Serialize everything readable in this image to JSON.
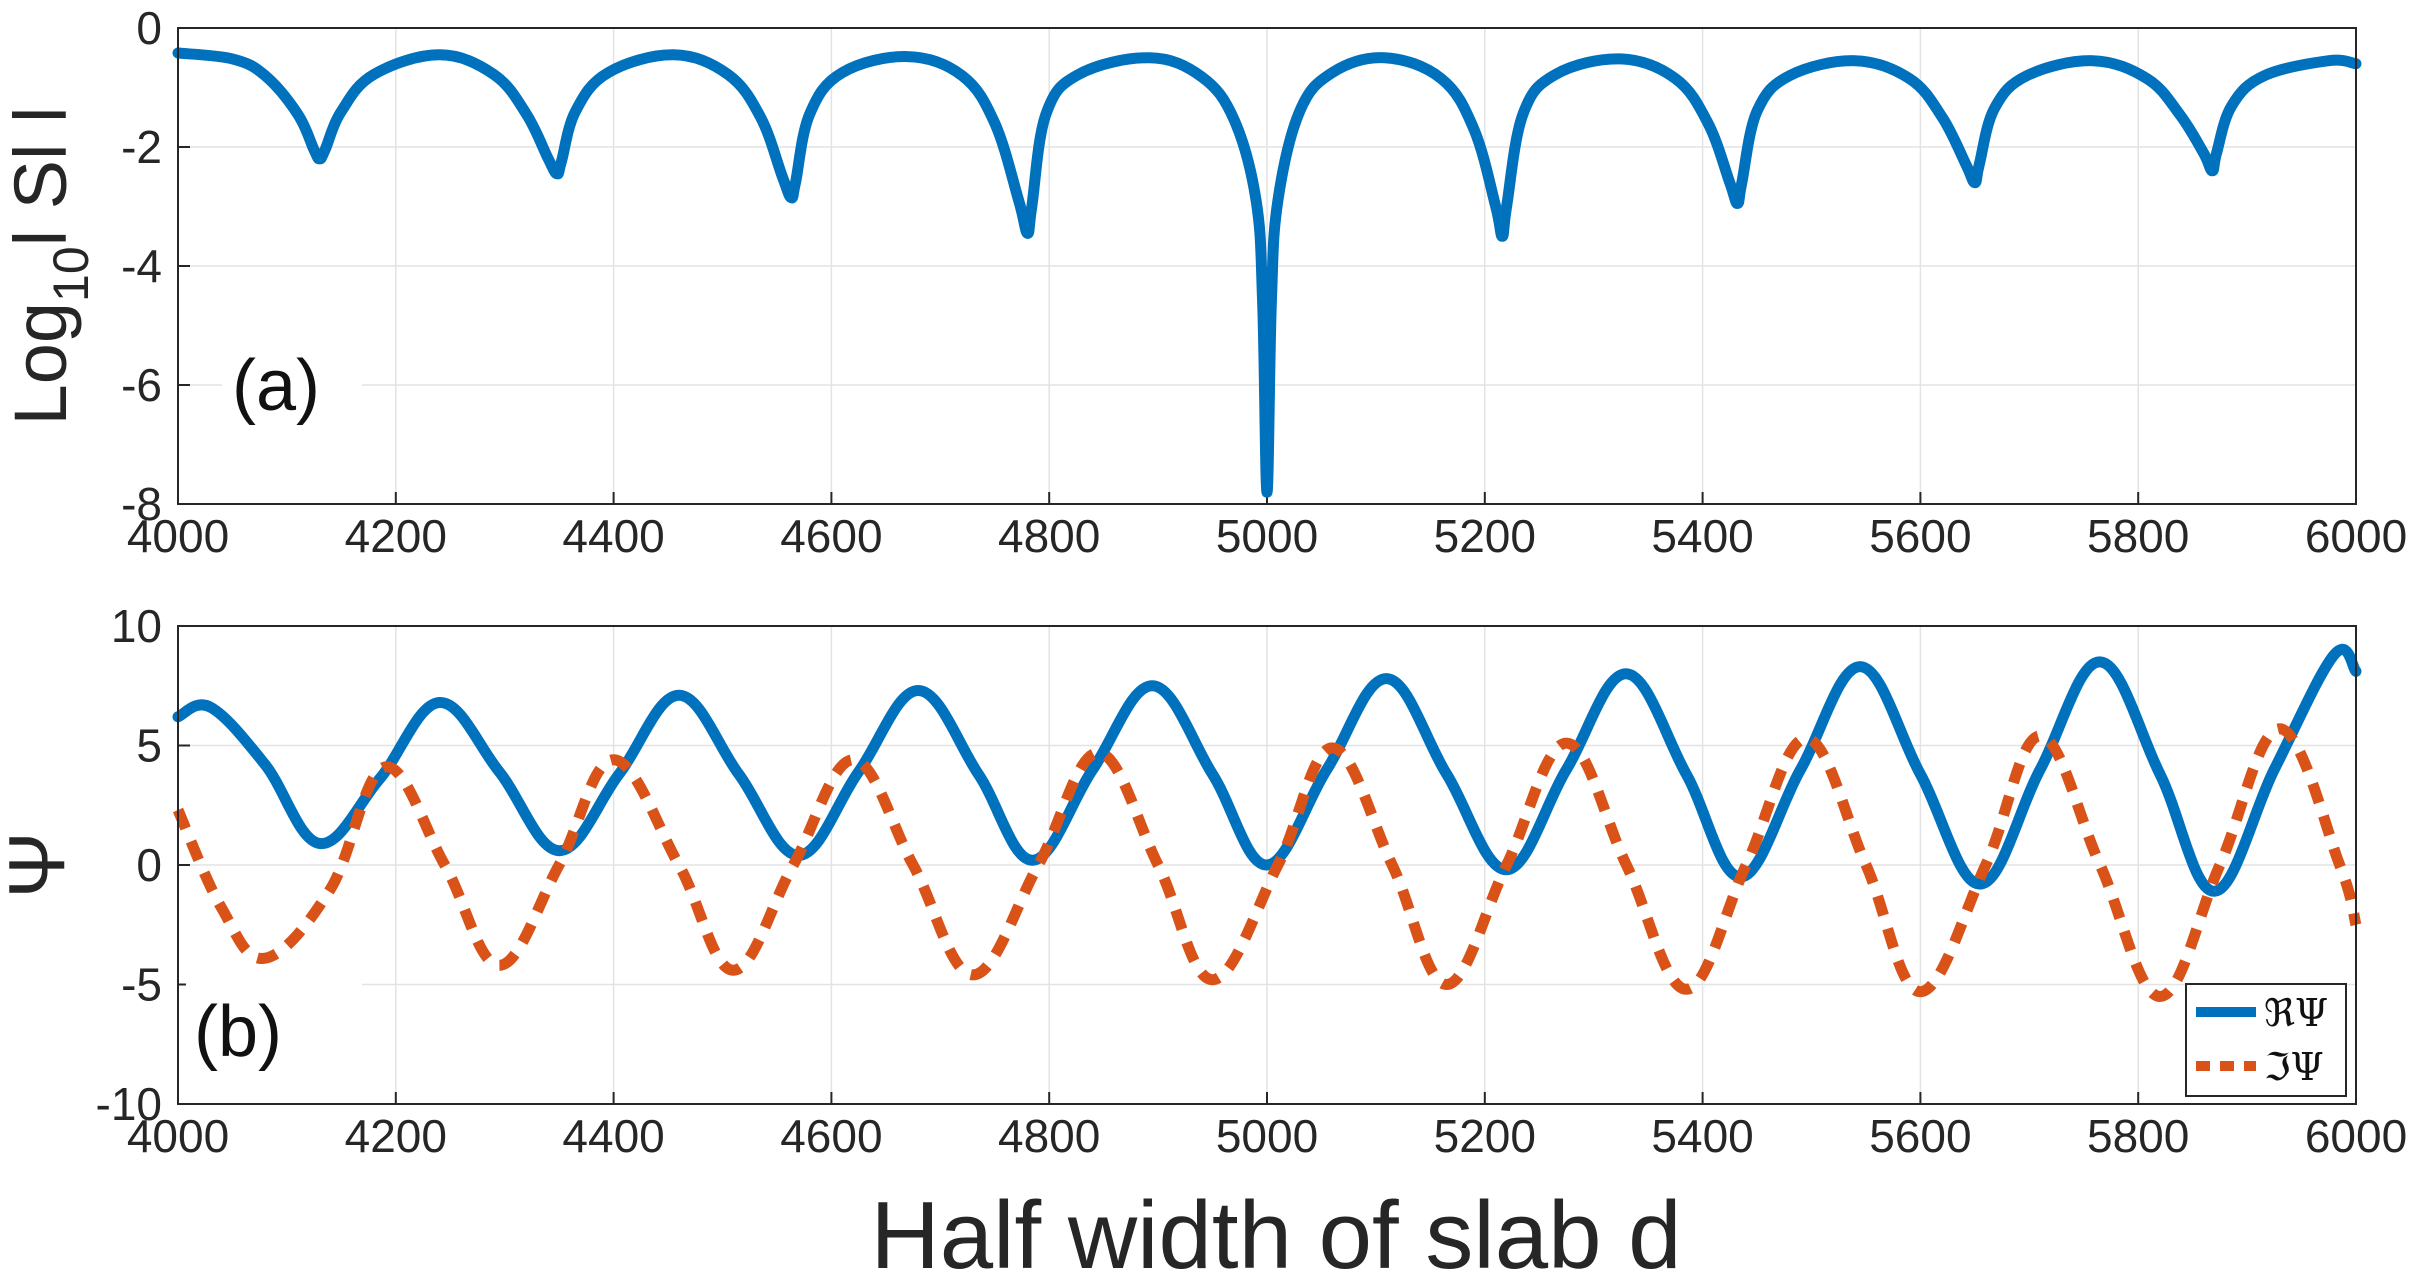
{
  "chart_data": [
    {
      "id": "a",
      "type": "line",
      "panel_label": "(a)",
      "xlabel": "",
      "ylabel": {
        "prefix": "Log",
        "subscript": "10",
        "suffix": "l Sl l"
      },
      "xlim": [
        4000,
        6000
      ],
      "ylim": [
        -8,
        0
      ],
      "xticks": [
        "4000",
        "4200",
        "4400",
        "4600",
        "4800",
        "5000",
        "5200",
        "5400",
        "5600",
        "5800",
        "6000"
      ],
      "yticks": [
        "0",
        "-2",
        "-4",
        "-6",
        "-8"
      ],
      "grid": true,
      "series": [
        {
          "name": "log10|S|",
          "color": "#0072BD",
          "style": "solid",
          "x": [
            4000,
            4050,
            4080,
            4110,
            4125,
            4130,
            4135,
            4150,
            4180,
            4240,
            4290,
            4320,
            4340,
            4348,
            4352,
            4365,
            4395,
            4455,
            4505,
            4535,
            4555,
            4563,
            4567,
            4580,
            4610,
            4670,
            4720,
            4750,
            4772,
            4780,
            4784,
            4797,
            4827,
            4892,
            4940,
            4970,
            4990,
            4996,
            5000,
            5004,
            5010,
            5030,
            5060,
            5108,
            5160,
            5190,
            5210,
            5216,
            5220,
            5235,
            5265,
            5325,
            5375,
            5405,
            5425,
            5432,
            5436,
            5450,
            5480,
            5540,
            5590,
            5620,
            5642,
            5650,
            5654,
            5668,
            5698,
            5758,
            5808,
            5838,
            5860,
            5868,
            5872,
            5886,
            5916,
            5975,
            6000
          ],
          "y": [
            -0.42,
            -0.52,
            -0.8,
            -1.45,
            -2.05,
            -2.2,
            -2.05,
            -1.4,
            -0.78,
            -0.45,
            -0.78,
            -1.45,
            -2.2,
            -2.45,
            -2.25,
            -1.4,
            -0.75,
            -0.45,
            -0.78,
            -1.5,
            -2.5,
            -2.85,
            -2.6,
            -1.45,
            -0.75,
            -0.48,
            -0.8,
            -1.6,
            -2.9,
            -3.45,
            -3.0,
            -1.45,
            -0.78,
            -0.5,
            -0.82,
            -1.55,
            -2.9,
            -4.6,
            -7.8,
            -4.6,
            -2.9,
            -1.4,
            -0.75,
            -0.5,
            -0.85,
            -1.7,
            -3.0,
            -3.5,
            -3.0,
            -1.45,
            -0.78,
            -0.52,
            -0.85,
            -1.6,
            -2.6,
            -2.95,
            -2.6,
            -1.4,
            -0.8,
            -0.55,
            -0.85,
            -1.5,
            -2.3,
            -2.6,
            -2.3,
            -1.35,
            -0.8,
            -0.55,
            -0.85,
            -1.45,
            -2.1,
            -2.4,
            -2.1,
            -1.3,
            -0.8,
            -0.55,
            -0.6
          ]
        }
      ]
    },
    {
      "id": "b",
      "type": "line",
      "panel_label": "(b)",
      "xlabel": "Half width of slab d",
      "ylabel": "Ψ",
      "xlim": [
        4000,
        6000
      ],
      "ylim": [
        -10,
        10
      ],
      "xticks": [
        "4000",
        "4200",
        "4400",
        "4600",
        "4800",
        "5000",
        "5200",
        "5400",
        "5600",
        "5800",
        "6000"
      ],
      "yticks": [
        "10",
        "5",
        "0",
        "-5",
        "-10"
      ],
      "grid": true,
      "legend": {
        "position": "bottom-right",
        "entries": [
          "ℜΨ",
          "ℑΨ"
        ]
      },
      "series": [
        {
          "name": "ℜΨ",
          "color": "#0072BD",
          "style": "solid",
          "x": [
            4000,
            4030,
            4080,
            4130,
            4185,
            4240,
            4295,
            4350,
            4405,
            4460,
            4515,
            4570,
            4625,
            4680,
            4735,
            4785,
            4840,
            4895,
            4950,
            5000,
            5055,
            5110,
            5165,
            5220,
            5275,
            5330,
            5385,
            5435,
            5490,
            5545,
            5600,
            5655,
            5710,
            5765,
            5820,
            5870,
            5925,
            5980,
            6000
          ],
          "y": [
            6.2,
            6.6,
            4.2,
            0.9,
            3.6,
            6.8,
            3.9,
            0.6,
            3.8,
            7.1,
            3.8,
            0.4,
            3.9,
            7.3,
            3.8,
            0.2,
            4.0,
            7.5,
            3.8,
            0.0,
            4.0,
            7.8,
            3.8,
            -0.2,
            4.0,
            8.0,
            3.8,
            -0.5,
            4.0,
            8.3,
            3.8,
            -0.8,
            4.0,
            8.5,
            3.8,
            -1.1,
            4.0,
            8.8,
            8.1
          ]
        },
        {
          "name": "ℑΨ",
          "color": "#D95319",
          "style": "dashed",
          "x": [
            4000,
            4040,
            4080,
            4140,
            4190,
            4245,
            4295,
            4350,
            4400,
            4460,
            4510,
            4565,
            4620,
            4675,
            4730,
            4790,
            4845,
            4900,
            4950,
            5010,
            5060,
            5115,
            5165,
            5220,
            5275,
            5330,
            5385,
            5440,
            5495,
            5550,
            5600,
            5660,
            5710,
            5765,
            5820,
            5875,
            5930,
            5985,
            6000
          ],
          "y": [
            2.3,
            -1.8,
            -3.9,
            -1.0,
            4.1,
            0.0,
            -4.2,
            0.0,
            4.4,
            0.0,
            -4.4,
            0.0,
            4.4,
            0.0,
            -4.6,
            0.0,
            4.7,
            0.0,
            -4.8,
            0.0,
            4.9,
            0.0,
            -5.0,
            0.0,
            5.1,
            0.0,
            -5.2,
            0.0,
            5.3,
            0.0,
            -5.3,
            0.0,
            5.4,
            0.0,
            -5.5,
            0.0,
            5.7,
            0.0,
            -2.5
          ]
        }
      ]
    }
  ]
}
